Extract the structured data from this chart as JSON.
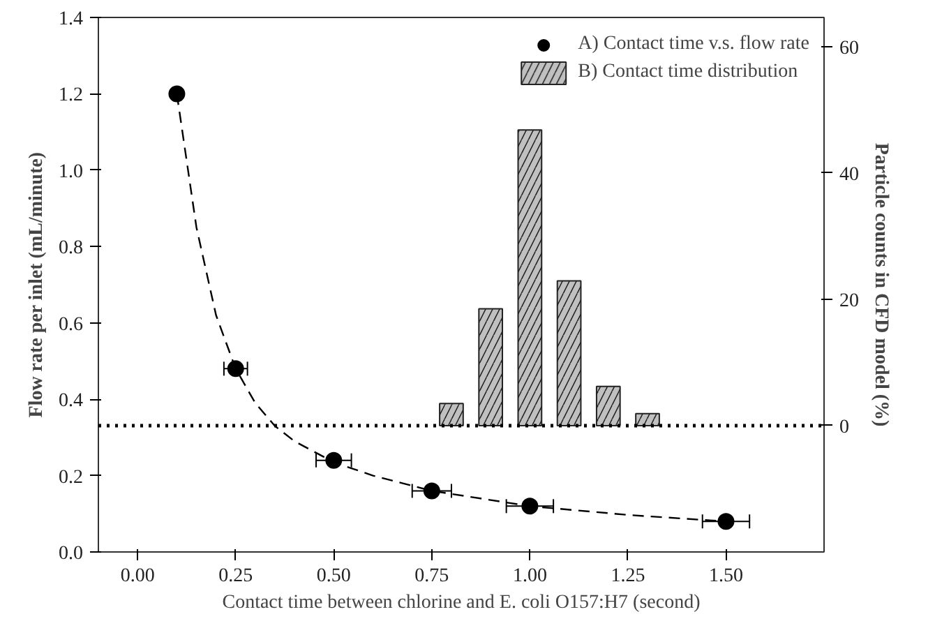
{
  "chart_data": {
    "type": "scatter",
    "xlabel": "Contact time between chlorine and E. coli O157:H7 (second)",
    "ylabel": "Flow rate per inlet (mL/minute)",
    "y2label": "Particle counts in CFD model (%)",
    "xlim": [
      -0.1,
      1.75
    ],
    "xticks": [
      {
        "value": 0,
        "label": "0.00"
      },
      {
        "value": 0.25,
        "label": "0.25"
      },
      {
        "value": 0.5,
        "label": "0.50"
      },
      {
        "value": 0.75,
        "label": "0.75"
      },
      {
        "value": 1,
        "label": "1.00"
      },
      {
        "value": 1.25,
        "label": "1.25"
      },
      {
        "value": 1.5,
        "label": "1.50"
      }
    ],
    "ylim": [
      0,
      1.4
    ],
    "yticks": [
      {
        "value": 0,
        "label": "0.0"
      },
      {
        "value": 0.2,
        "label": "0.2"
      },
      {
        "value": 0.4,
        "label": "0.4"
      },
      {
        "value": 0.6,
        "label": "0.6"
      },
      {
        "value": 0.8,
        "label": "0.8"
      },
      {
        "value": 1,
        "label": "1.0"
      },
      {
        "value": 1.2,
        "label": "1.2"
      },
      {
        "value": 1.4,
        "label": "1.4"
      }
    ],
    "y2lim": [
      -20,
      64.6
    ],
    "y2ticks": [
      0,
      20,
      40,
      60
    ],
    "grid": false,
    "legend": "top right",
    "ref_lines": [
      {
        "axis": "y2",
        "value": 0,
        "line_style": "dotted",
        "color": "#000000"
      }
    ],
    "series": [
      {
        "type": "bar",
        "axis": "y2",
        "name": "B) Contact time distribution",
        "color": "#c0c0c0",
        "x": [
          0.8,
          0.9,
          1.0,
          1.1,
          1.2,
          1.3
        ],
        "values": [
          3.5,
          18.5,
          46.8,
          22.9,
          6.2,
          1.9
        ]
      },
      {
        "type": "line",
        "color": "#000000",
        "line_style": "dashed",
        "x": [
          0.1,
          0.15,
          0.2,
          0.25,
          0.3,
          0.35,
          0.4,
          0.5,
          0.6,
          0.75,
          1.0,
          1.25,
          1.5
        ],
        "values": [
          1.2,
          0.85,
          0.62,
          0.48,
          0.39,
          0.33,
          0.29,
          0.235,
          0.2,
          0.16,
          0.12,
          0.097,
          0.08
        ]
      },
      {
        "name": "A) Contact time v.s. flow rate",
        "color": "#000000",
        "marker": "circle",
        "x": [
          0.1,
          0.25,
          0.5,
          0.75,
          1.0,
          1.5
        ],
        "values": [
          1.2,
          0.48,
          0.24,
          0.16,
          0.12,
          0.08
        ],
        "xerrors": [
          0.01,
          0.03,
          0.045,
          0.05,
          0.06,
          0.06
        ]
      }
    ]
  }
}
